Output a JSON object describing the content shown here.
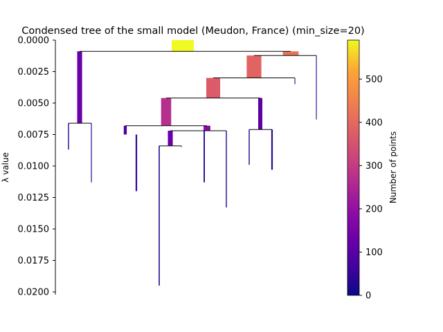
{
  "chart_data": {
    "type": "condensed-tree",
    "title": "Condensed tree of the small model (Meudon, France) (min_size=20)",
    "ylabel": "λ value",
    "ylim": [
      0.0,
      0.0201
    ],
    "y_inverted": true,
    "y_ticks": [
      "0.0000",
      "0.0025",
      "0.0050",
      "0.0075",
      "0.0100",
      "0.0125",
      "0.0150",
      "0.0175",
      "0.0200"
    ],
    "x_axis_visible": false,
    "colorbar": {
      "label": "Number of points",
      "colormap": "plasma",
      "range": [
        0,
        590
      ],
      "ticks": [
        "0",
        "100",
        "200",
        "300",
        "400",
        "500"
      ]
    },
    "branches": [
      {
        "id": "root",
        "lambda_start": 0.0,
        "lambda_end": 0.00089,
        "size": 590
      },
      {
        "id": "A",
        "lambda_start": 0.00089,
        "lambda_end": 0.0066,
        "size": 130
      },
      {
        "id": "A-left",
        "lambda_start": 0.0066,
        "lambda_end": 0.0087,
        "size": 25
      },
      {
        "id": "A-right",
        "lambda_start": 0.0066,
        "lambda_end": 0.0113,
        "size": 22
      },
      {
        "id": "B",
        "lambda_start": 0.00089,
        "lambda_end": 0.00122,
        "size": 420
      },
      {
        "id": "B-right",
        "lambda_start": 0.00122,
        "lambda_end": 0.0063,
        "size": 20
      },
      {
        "id": "C",
        "lambda_start": 0.00122,
        "lambda_end": 0.003,
        "size": 390
      },
      {
        "id": "C-right",
        "lambda_start": 0.003,
        "lambda_end": 0.0035,
        "size": 20
      },
      {
        "id": "D",
        "lambda_start": 0.003,
        "lambda_end": 0.0046,
        "size": 370
      },
      {
        "id": "E",
        "lambda_start": 0.0046,
        "lambda_end": 0.0068,
        "size": 270
      },
      {
        "id": "F",
        "lambda_start": 0.0046,
        "lambda_end": 0.0071,
        "size": 110
      },
      {
        "id": "F-left",
        "lambda_start": 0.0071,
        "lambda_end": 0.0099,
        "size": 25
      },
      {
        "id": "F-right",
        "lambda_start": 0.0071,
        "lambda_end": 0.0103,
        "size": 40
      },
      {
        "id": "G",
        "lambda_start": 0.0068,
        "lambda_end": 0.0075,
        "size": 80
      },
      {
        "id": "G-left",
        "lambda_start": 0.0075,
        "lambda_end": 0.012,
        "size": 40
      },
      {
        "id": "H",
        "lambda_start": 0.0068,
        "lambda_end": 0.0072,
        "size": 180
      },
      {
        "id": "I",
        "lambda_start": 0.0072,
        "lambda_end": 0.0084,
        "size": 130
      },
      {
        "id": "I-left",
        "lambda_start": 0.0084,
        "lambda_end": 0.0195,
        "size": 30
      },
      {
        "id": "I-right",
        "lambda_start": 0.0084,
        "lambda_end": 0.0085,
        "size": 20
      },
      {
        "id": "J",
        "lambda_start": 0.0072,
        "lambda_end": 0.0113,
        "size": 35
      },
      {
        "id": "K",
        "lambda_start": 0.0072,
        "lambda_end": 0.0133,
        "size": 25
      }
    ]
  }
}
